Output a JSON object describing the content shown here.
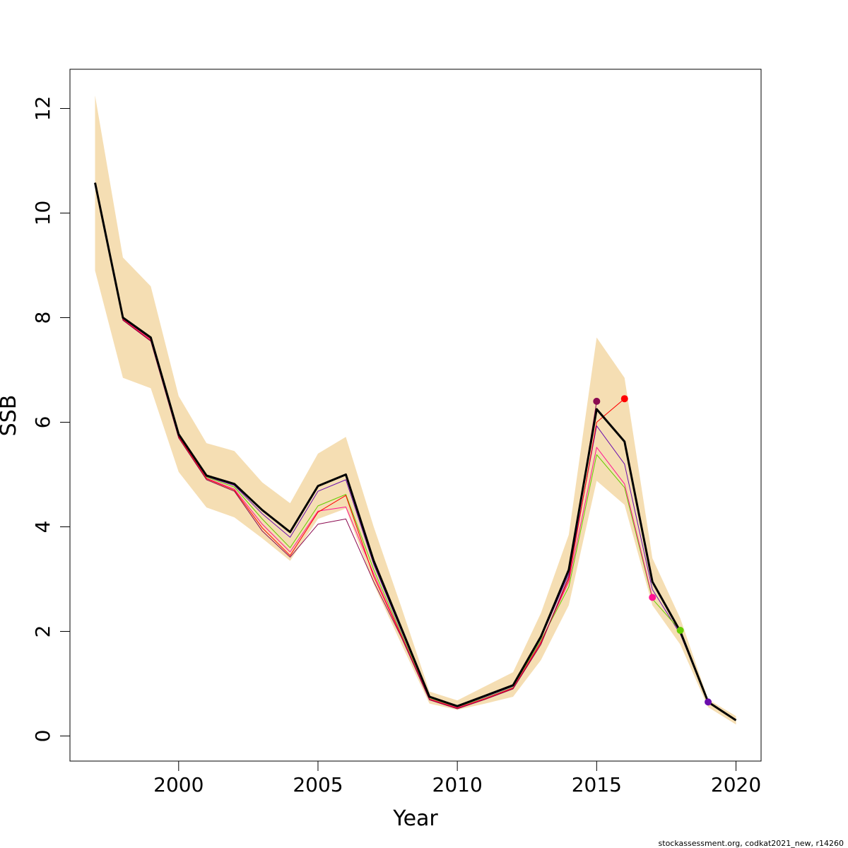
{
  "chart_data": {
    "type": "line",
    "title": "",
    "xlabel": "Year",
    "ylabel": "SSB",
    "xlim": [
      1996.1,
      2020.9
    ],
    "ylim": [
      -0.48,
      12.75
    ],
    "x_ticks": [
      2000,
      2005,
      2010,
      2015,
      2020
    ],
    "y_ticks": [
      0,
      2,
      4,
      6,
      8,
      10,
      12
    ],
    "grid": false,
    "legend": "none",
    "confidence_band": {
      "color": "#F5DEB3",
      "x": [
        1997,
        1998,
        1999,
        2000,
        2001,
        2002,
        2003,
        2004,
        2005,
        2006,
        2007,
        2008,
        2009,
        2010,
        2011,
        2012,
        2013,
        2014,
        2015,
        2016,
        2017,
        2018,
        2019,
        2020
      ],
      "upper": [
        12.25,
        9.15,
        8.6,
        6.5,
        5.6,
        5.45,
        4.85,
        4.45,
        5.4,
        5.72,
        4.0,
        2.45,
        0.85,
        0.68,
        0.95,
        1.22,
        2.35,
        3.85,
        7.62,
        6.85,
        3.4,
        2.25,
        0.7,
        0.38
      ],
      "lower": [
        8.9,
        6.85,
        6.65,
        5.05,
        4.37,
        4.18,
        3.78,
        3.35,
        4.15,
        4.35,
        2.9,
        1.75,
        0.62,
        0.5,
        0.62,
        0.75,
        1.45,
        2.5,
        4.88,
        4.42,
        2.5,
        1.75,
        0.55,
        0.22
      ]
    },
    "series": [
      {
        "color": "#000000",
        "x": [
          1997,
          1998,
          1999,
          2000,
          2001,
          2002,
          2003,
          2004,
          2005,
          2006,
          2007,
          2008,
          2009,
          2010,
          2011,
          2012,
          2013,
          2014,
          2015,
          2016,
          2017,
          2018,
          2019,
          2020
        ],
        "values": [
          10.58,
          8.0,
          7.62,
          5.77,
          4.98,
          4.82,
          4.32,
          3.9,
          4.78,
          5.0,
          3.35,
          2.05,
          0.75,
          0.57,
          0.77,
          0.97,
          1.9,
          3.18,
          6.25,
          5.63,
          2.95,
          2.0,
          0.65,
          0.3
        ]
      },
      {
        "color": "#6A0DAD",
        "x": [
          1997,
          1998,
          1999,
          2000,
          2001,
          2002,
          2003,
          2004,
          2005,
          2006,
          2007,
          2008,
          2009,
          2010,
          2011,
          2012,
          2013,
          2014,
          2015,
          2016,
          2017,
          2018,
          2019
        ],
        "values": [
          10.57,
          7.99,
          7.6,
          5.75,
          4.96,
          4.79,
          4.25,
          3.8,
          4.68,
          4.9,
          3.28,
          2.0,
          0.74,
          0.56,
          0.75,
          0.95,
          1.87,
          3.1,
          5.93,
          5.2,
          2.8,
          1.95,
          0.65
        ]
      },
      {
        "color": "#66CC00",
        "x": [
          1997,
          1998,
          1999,
          2000,
          2001,
          2002,
          2003,
          2004,
          2005,
          2006,
          2007,
          2008,
          2009,
          2010,
          2011,
          2012,
          2013,
          2014,
          2015,
          2016,
          2017,
          2018
        ],
        "values": [
          10.56,
          7.98,
          7.59,
          5.74,
          4.95,
          4.76,
          4.15,
          3.6,
          4.4,
          4.62,
          3.18,
          1.95,
          0.72,
          0.55,
          0.73,
          0.93,
          1.83,
          2.85,
          5.38,
          4.75,
          2.62,
          2.02
        ]
      },
      {
        "color": "#FF1493",
        "x": [
          1997,
          1998,
          1999,
          2000,
          2001,
          2002,
          2003,
          2004,
          2005,
          2006,
          2007,
          2008,
          2009,
          2010,
          2011,
          2012,
          2013,
          2014,
          2015,
          2016,
          2017
        ],
        "values": [
          10.55,
          7.97,
          7.58,
          5.73,
          4.93,
          4.72,
          4.05,
          3.52,
          4.3,
          4.38,
          3.1,
          1.92,
          0.71,
          0.54,
          0.72,
          0.92,
          1.8,
          2.95,
          5.52,
          4.82,
          2.65
        ]
      },
      {
        "color": "#FF0000",
        "x": [
          1997,
          1998,
          1999,
          2000,
          2001,
          2002,
          2003,
          2004,
          2005,
          2006,
          2007,
          2008,
          2009,
          2010,
          2011,
          2012,
          2013,
          2014,
          2015,
          2016
        ],
        "values": [
          10.54,
          7.96,
          7.56,
          5.72,
          4.92,
          4.7,
          3.98,
          3.45,
          4.28,
          4.6,
          3.05,
          1.9,
          0.7,
          0.53,
          0.71,
          0.91,
          1.78,
          3.0,
          6.0,
          6.45
        ]
      },
      {
        "color": "#8B0A50",
        "x": [
          1997,
          1998,
          1999,
          2000,
          2001,
          2002,
          2003,
          2004,
          2005,
          2006,
          2007,
          2008,
          2009,
          2010,
          2011,
          2012,
          2013,
          2014,
          2015
        ],
        "values": [
          10.53,
          7.95,
          7.55,
          5.7,
          4.9,
          4.68,
          3.92,
          3.42,
          4.05,
          4.15,
          2.95,
          1.88,
          0.69,
          0.52,
          0.7,
          0.9,
          1.75,
          3.05,
          6.4
        ]
      }
    ],
    "endpoints": [
      {
        "x": 2015,
        "y": 6.4,
        "color": "#8B0A50"
      },
      {
        "x": 2016,
        "y": 6.45,
        "color": "#FF0000"
      },
      {
        "x": 2017,
        "y": 2.65,
        "color": "#FF1493"
      },
      {
        "x": 2018,
        "y": 2.02,
        "color": "#66CC00"
      },
      {
        "x": 2019,
        "y": 0.65,
        "color": "#6A0DAD"
      }
    ]
  },
  "footer_text": "stockassessment.org, codkat2021_new, r14260"
}
